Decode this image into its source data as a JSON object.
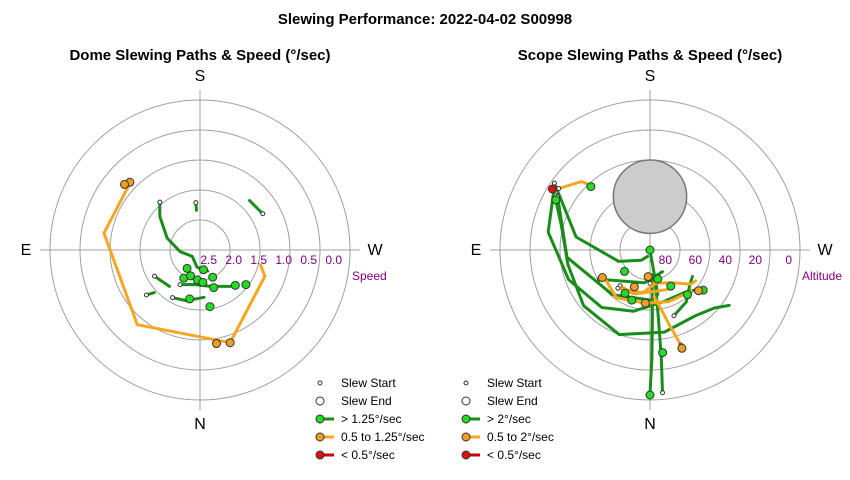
{
  "title": "Slewing Performance: 2022-04-02 S00998",
  "colors": {
    "green": "#1a8c1a",
    "green_fill": "#22dd22",
    "orange": "#f5a623",
    "orange_fill": "#f0a020",
    "red": "#cc0000",
    "red_fill": "#dd1111",
    "grid": "#a0a0a0",
    "tick": "#800080",
    "shadow": "#cccccc"
  },
  "chart_data": [
    {
      "type": "scatter",
      "subtype": "polar",
      "title": "Dome Slewing Paths & Speed (°/sec)",
      "compass": {
        "top": "S",
        "bottom": "N",
        "left": "E",
        "right": "W"
      },
      "radial_axis": {
        "label": "Speed",
        "ticks": [
          "2.5",
          "2.0",
          "1.5",
          "1.0",
          "0.5",
          "0.0"
        ],
        "range": [
          3.0,
          0.0
        ]
      },
      "legend": {
        "placement": "bottom-right",
        "items": [
          "Slew Start",
          "Slew End",
          "> 1.25°/sec",
          "0.5 to 1.25°/sec",
          "< 0.5°/sec"
        ]
      },
      "paths": [
        {
          "speed": "0.5 to 1.25°/sec",
          "points": [
            [
              45,
              1.05
            ],
            [
              80,
              1.05
            ],
            [
              140,
              1.05
            ],
            [
              198,
              1.05
            ],
            [
              248,
              1.6
            ],
            [
              256,
              1.75
            ]
          ]
        },
        {
          "speed": "> 1.25°/sec",
          "points": [
            [
              5,
              2.05
            ],
            [
              5,
              2.2
            ]
          ]
        },
        {
          "speed": "> 1.25°/sec",
          "points": [
            [
              40,
              1.75
            ],
            [
              50,
              1.95
            ],
            [
              70,
              2.3
            ],
            [
              95,
              2.6
            ],
            [
              130,
              2.8
            ],
            [
              170,
              2.65
            ],
            [
              200,
              2.55
            ]
          ]
        },
        {
          "speed": "> 1.25°/sec",
          "points": [
            [
              150,
              2.2
            ],
            [
              170,
              2.3
            ],
            [
              195,
              2.25
            ],
            [
              220,
              2.05
            ]
          ]
        },
        {
          "speed": "> 1.25°/sec",
          "points": [
            [
              300,
              1.55
            ],
            [
              315,
              1.6
            ]
          ]
        },
        {
          "speed": "> 1.25°/sec",
          "points": [
            [
              130,
              1.6
            ],
            [
              133,
              1.75
            ]
          ]
        },
        {
          "speed": "> 1.25°/sec",
          "points": [
            [
              150,
              1.9
            ],
            [
              165,
              1.95
            ],
            [
              185,
              2.05
            ]
          ]
        },
        {
          "speed": "> 1.25°/sec",
          "points": [
            [
              120,
              1.95
            ],
            [
              140,
              2.05
            ]
          ]
        }
      ],
      "points": [
        {
          "az": 198,
          "r": 1.05,
          "speed": "0.5 to 1.25°/sec"
        },
        {
          "az": 190,
          "r": 1.1,
          "speed": "0.5 to 1.25°/sec"
        },
        {
          "az": 46,
          "r": 1.05,
          "speed": "0.5 to 1.25°/sec"
        },
        {
          "az": 49,
          "r": 1.0,
          "speed": "0.5 to 1.25°/sec"
        },
        {
          "az": 190,
          "r": 1.85,
          "speed": "> 1.25°/sec"
        },
        {
          "az": 233,
          "r": 1.85,
          "speed": "> 1.25°/sec"
        },
        {
          "az": 225,
          "r": 2.0,
          "speed": "> 1.25°/sec"
        },
        {
          "az": 168,
          "r": 2.0,
          "speed": "> 1.25°/sec"
        },
        {
          "az": 200,
          "r": 2.2,
          "speed": "> 1.25°/sec"
        },
        {
          "az": 150,
          "r": 2.35,
          "speed": "> 1.25°/sec"
        },
        {
          "az": 160,
          "r": 2.45,
          "speed": "> 1.25°/sec"
        },
        {
          "az": 175,
          "r": 2.4,
          "speed": "> 1.25°/sec"
        },
        {
          "az": 185,
          "r": 2.35,
          "speed": "> 1.25°/sec"
        },
        {
          "az": 205,
          "r": 2.4,
          "speed": "> 1.25°/sec"
        },
        {
          "az": 190,
          "r": 2.6,
          "speed": "> 1.25°/sec"
        },
        {
          "az": 145,
          "r": 2.55,
          "speed": "> 1.25°/sec"
        }
      ]
    },
    {
      "type": "scatter",
      "subtype": "polar",
      "title": "Scope Slewing Paths & Speed (°/sec)",
      "compass": {
        "top": "S",
        "bottom": "N",
        "left": "E",
        "right": "W"
      },
      "radial_axis": {
        "label": "Altitude",
        "ticks": [
          "80",
          "60",
          "40",
          "20",
          "0"
        ],
        "range": [
          90,
          0
        ]
      },
      "shadow": {
        "az": 0,
        "alt": 58,
        "radius_deg": 22
      },
      "legend": {
        "placement": "bottom-right",
        "items": [
          "Slew Start",
          "Slew End",
          "> 2°/sec",
          "0.5 to 2°/sec",
          "< 0.5°/sec"
        ]
      },
      "paths": [
        {
          "speed": "> 2°/sec",
          "points": [
            [
              180,
              4
            ],
            [
              181,
              25
            ],
            [
              182,
              48
            ],
            [
              183,
              62
            ],
            [
              184,
              75
            ]
          ]
        },
        {
          "speed": "> 2°/sec",
          "points": [
            [
              185,
              4
            ],
            [
              186,
              25
            ],
            [
              187,
              48
            ],
            [
              188,
              62
            ],
            [
              190,
              75
            ]
          ]
        },
        {
          "speed": "> 2°/sec",
          "points": [
            [
              60,
              24
            ],
            [
              75,
              35
            ],
            [
              100,
              40
            ],
            [
              130,
              38
            ],
            [
              160,
              36
            ],
            [
              190,
              40
            ],
            [
              215,
              42
            ],
            [
              228,
              38
            ],
            [
              235,
              32
            ]
          ]
        },
        {
          "speed": "> 2°/sec",
          "points": [
            [
              58,
              22
            ],
            [
              80,
              28
            ],
            [
              110,
              38
            ],
            [
              140,
              45
            ],
            [
              165,
              52
            ],
            [
              195,
              58
            ],
            [
              220,
              57
            ],
            [
              232,
              52
            ]
          ]
        },
        {
          "speed": "> 2°/sec",
          "points": [
            [
              55,
              20
            ],
            [
              80,
              45
            ],
            [
              110,
              70
            ],
            [
              140,
              82
            ],
            [
              160,
              86
            ]
          ]
        },
        {
          "speed": "> 2°/sec",
          "points": [
            [
              200,
              48
            ],
            [
              215,
              52
            ],
            [
              228,
              58
            ],
            [
              238,
              60
            ]
          ]
        },
        {
          "speed": "> 2°/sec",
          "points": [
            [
              60,
              26
            ],
            [
              95,
              40
            ],
            [
              140,
              55
            ],
            [
              180,
              60
            ]
          ]
        },
        {
          "speed": "> 2°/sec",
          "points": [
            [
              0,
              90
            ],
            [
              190,
              63
            ]
          ]
        },
        {
          "speed": "> 2°/sec",
          "points": [
            [
              120,
              55
            ],
            [
              170,
              70
            ],
            [
              210,
              75
            ]
          ]
        },
        {
          "speed": "0.5 to 2°/sec",
          "points": [
            [
              198,
              30
            ],
            [
              195,
              42
            ],
            [
              190,
              55
            ],
            [
              185,
              62
            ]
          ]
        },
        {
          "speed": "0.5 to 2°/sec",
          "points": [
            [
              140,
              62
            ],
            [
              160,
              62
            ],
            [
              190,
              65
            ],
            [
              205,
              64
            ]
          ]
        },
        {
          "speed": "0.5 to 2°/sec",
          "points": [
            [
              120,
              58
            ],
            [
              145,
              55
            ],
            [
              175,
              58
            ],
            [
              200,
              57
            ],
            [
              225,
              55
            ]
          ]
        },
        {
          "speed": "0.5 to 2°/sec",
          "points": [
            [
              56,
              24
            ],
            [
              45,
              32
            ],
            [
              42,
              38
            ]
          ]
        },
        {
          "speed": "0.5 to 2°/sec",
          "points": [
            [
              180,
              70
            ],
            [
              215,
              66
            ],
            [
              230,
              58
            ],
            [
              236,
              57
            ]
          ]
        },
        {
          "speed": "0.5 to 2°/sec",
          "points": [
            [
              140,
              60
            ],
            [
              170,
              64
            ],
            [
              200,
              71
            ]
          ]
        }
      ],
      "points": [
        {
          "az": 180,
          "alt": 3,
          "speed": "> 2°/sec"
        },
        {
          "az": 187,
          "alt": 28,
          "speed": "> 2°/sec"
        },
        {
          "az": 160,
          "alt": 58,
          "speed": "> 2°/sec"
        },
        {
          "az": 130,
          "alt": 70,
          "speed": "> 2°/sec"
        },
        {
          "az": 210,
          "alt": 65,
          "speed": "> 2°/sec"
        },
        {
          "az": 220,
          "alt": 55,
          "speed": "> 2°/sec"
        },
        {
          "az": 233,
          "alt": 50,
          "speed": "> 2°/sec"
        },
        {
          "az": 0,
          "alt": 90,
          "speed": "> 2°/sec"
        },
        {
          "az": 62,
          "alt": 26,
          "speed": "> 2°/sec"
        },
        {
          "az": 43,
          "alt": 38,
          "speed": "> 2°/sec"
        },
        {
          "az": 195,
          "alt": 72,
          "speed": "> 2°/sec"
        },
        {
          "az": 150,
          "alt": 60,
          "speed": "> 2°/sec"
        },
        {
          "az": 175,
          "alt": 58,
          "speed": "0.5 to 2°/sec"
        },
        {
          "az": 198,
          "alt": 28,
          "speed": "0.5 to 2°/sec"
        },
        {
          "az": 230,
          "alt": 52,
          "speed": "0.5 to 2°/sec"
        },
        {
          "az": 120,
          "alt": 57,
          "speed": "0.5 to 2°/sec"
        },
        {
          "az": 157,
          "alt": 66,
          "speed": "0.5 to 2°/sec"
        },
        {
          "az": 176,
          "alt": 74,
          "speed": "0.5 to 2°/sec"
        },
        {
          "az": 58,
          "alt": 21,
          "speed": "< 0.5°/sec"
        }
      ]
    }
  ]
}
